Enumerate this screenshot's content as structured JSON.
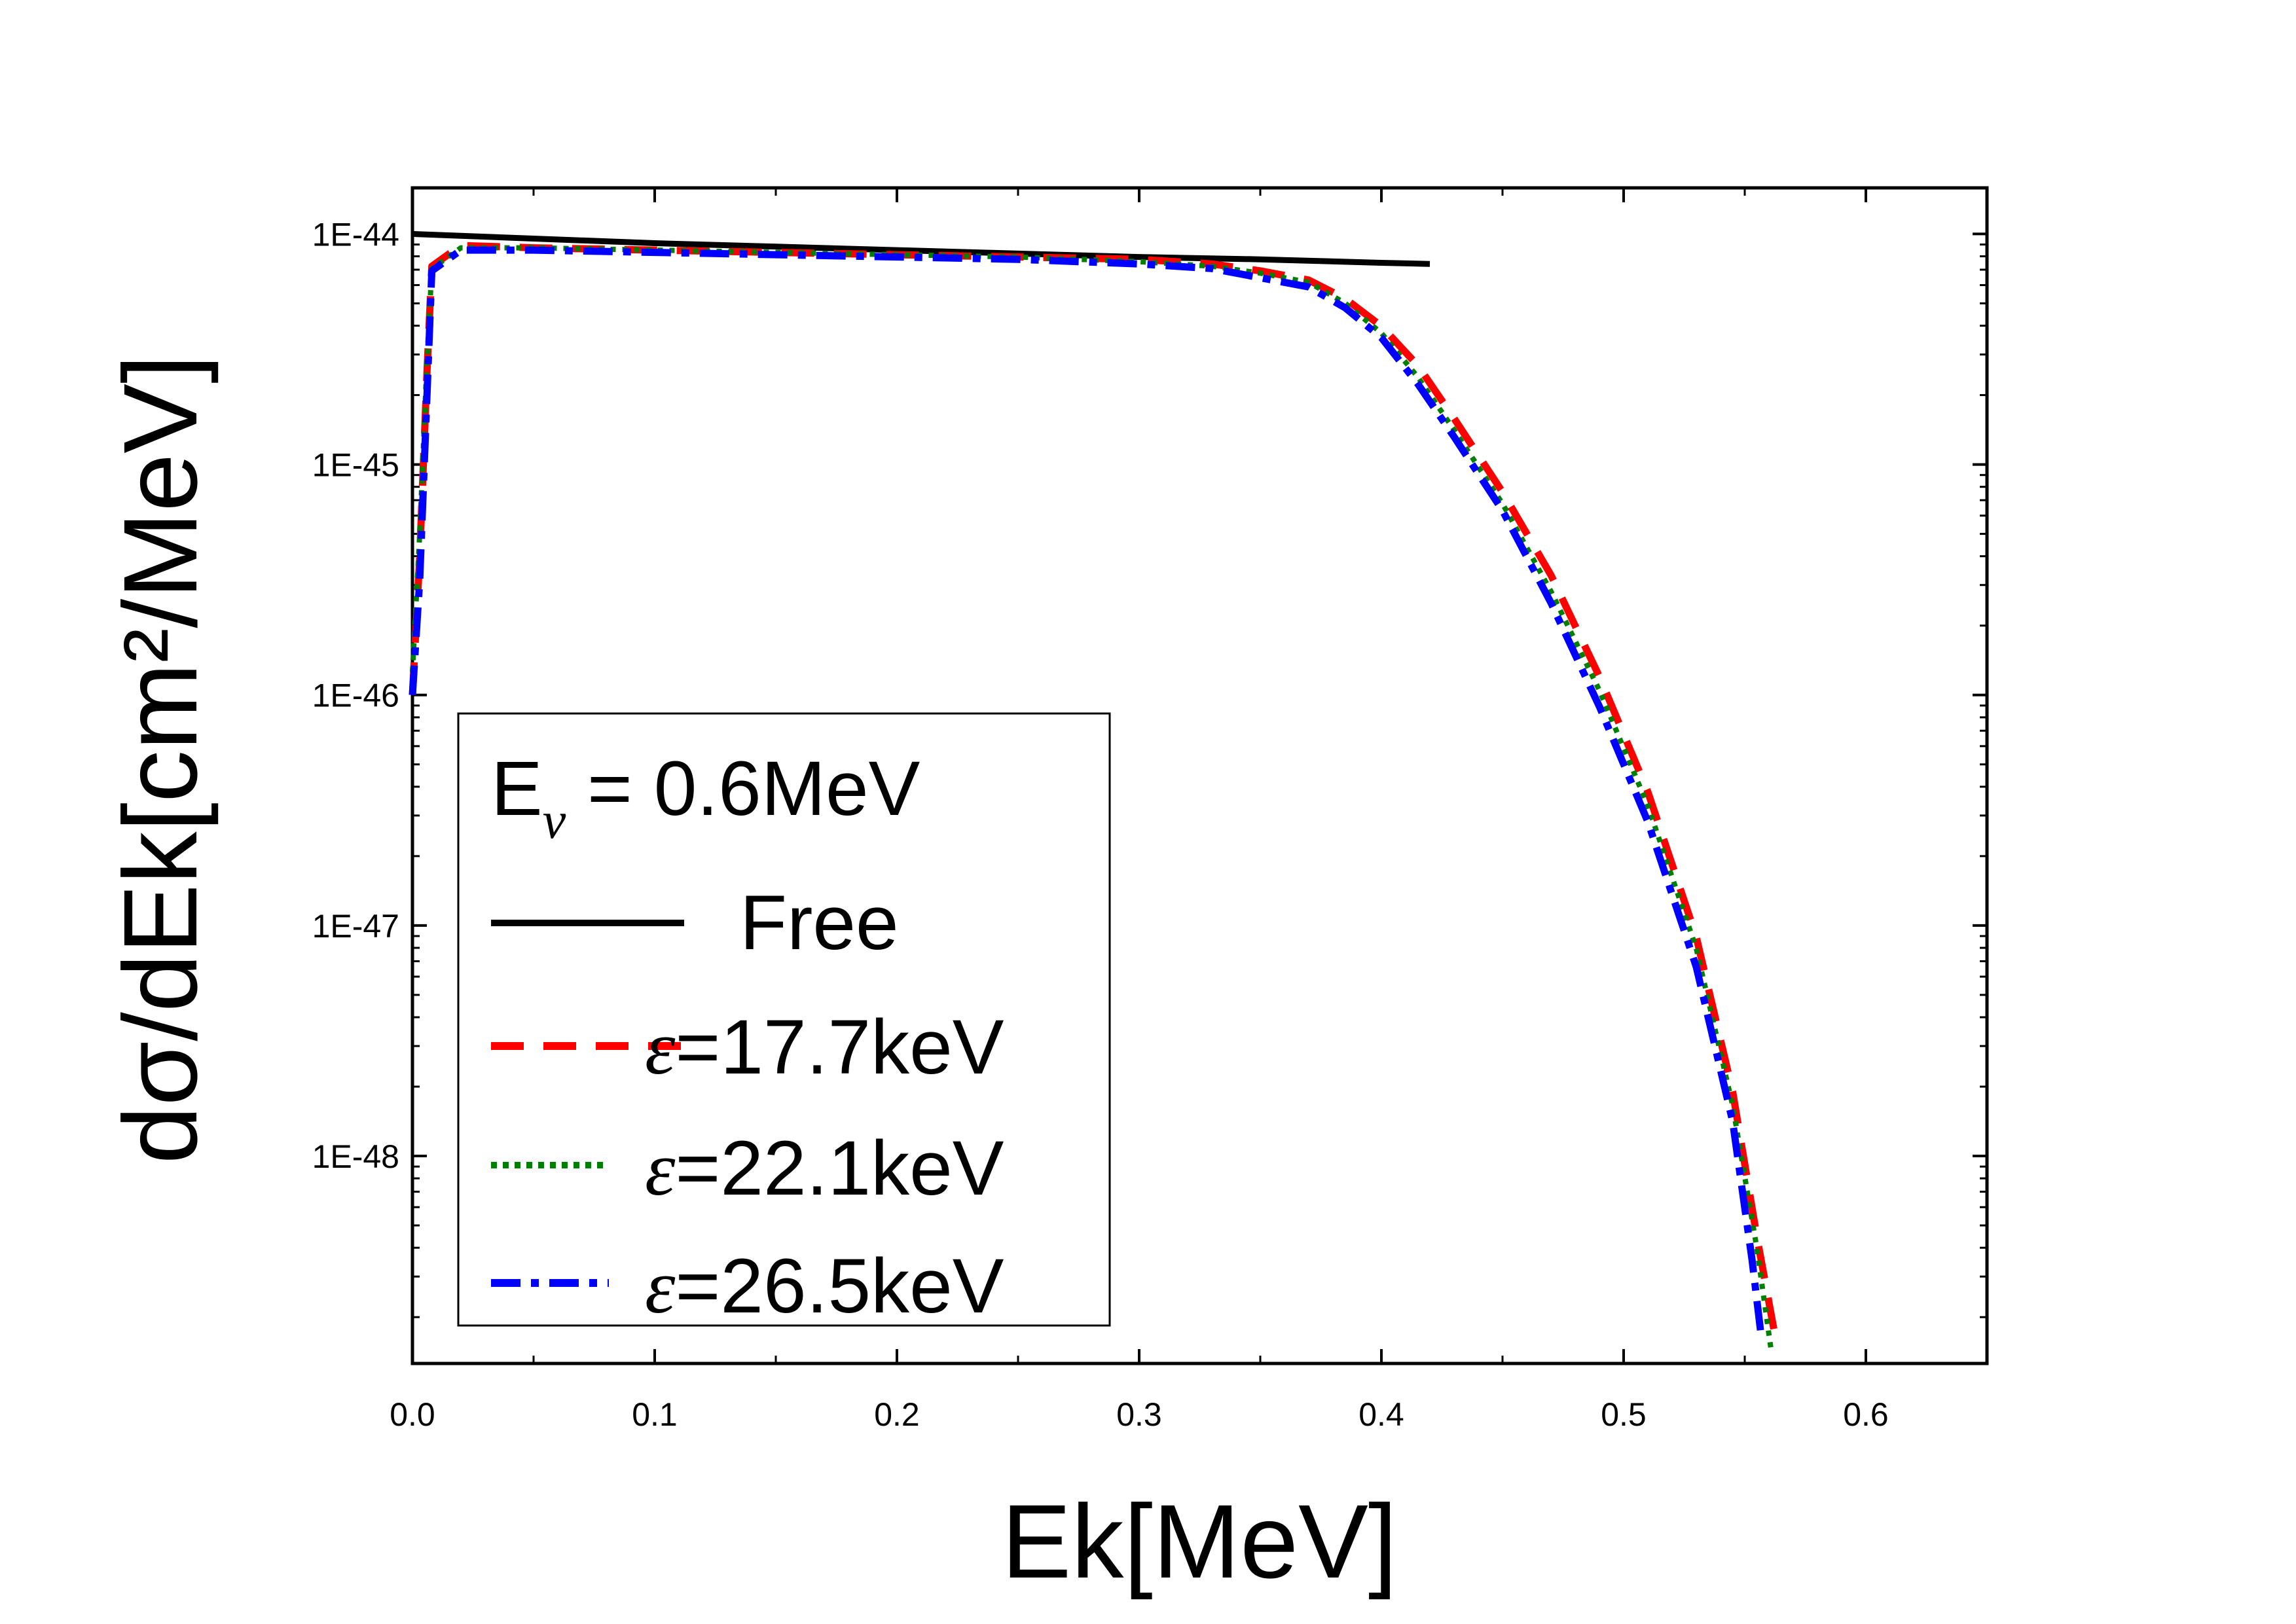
{
  "chart_data": {
    "type": "line",
    "title": "",
    "xlabel": "Ek[MeV]",
    "ylabel": "dσ/dEk[cm²/MeV]",
    "xlim": [
      0.0,
      0.65
    ],
    "ylim_log10": [
      -48.9,
      -43.8
    ],
    "y_scale": "log",
    "x_ticks": [
      0.0,
      0.1,
      0.2,
      0.3,
      0.4,
      0.5,
      0.6
    ],
    "x_tick_labels": [
      "0.0",
      "0.1",
      "0.2",
      "0.3",
      "0.4",
      "0.5",
      "0.6"
    ],
    "y_ticks_log10": [
      -44,
      -45,
      -46,
      -47,
      -48
    ],
    "y_tick_labels": [
      "1E-44",
      "1E-45",
      "1E-46",
      "1E-47",
      "1E-48"
    ],
    "legend": {
      "position": "bottom-left",
      "title_main": "E",
      "title_sub": "ν",
      "title_rest": " = 0.6MeV"
    },
    "series": [
      {
        "name": "Free",
        "label": "Free",
        "color": "#000000",
        "dash": "solid",
        "points": [
          [
            0.0,
            -44.0
          ],
          [
            0.05,
            -44.02
          ],
          [
            0.1,
            -44.04
          ],
          [
            0.15,
            -44.055
          ],
          [
            0.2,
            -44.07
          ],
          [
            0.25,
            -44.085
          ],
          [
            0.3,
            -44.1
          ],
          [
            0.35,
            -44.11
          ],
          [
            0.4,
            -44.125
          ],
          [
            0.42,
            -44.13
          ]
        ]
      },
      {
        "name": "ε=17.7keV",
        "label_prefix": "ε",
        "label_rest": "=17.7keV",
        "color": "#ff0000",
        "dash": "dashed",
        "points": [
          [
            0.0,
            -46.0
          ],
          [
            0.003,
            -45.4
          ],
          [
            0.006,
            -44.6
          ],
          [
            0.008,
            -44.14
          ],
          [
            0.02,
            -44.05
          ],
          [
            0.05,
            -44.06
          ],
          [
            0.1,
            -44.07
          ],
          [
            0.15,
            -44.08
          ],
          [
            0.2,
            -44.09
          ],
          [
            0.25,
            -44.1
          ],
          [
            0.3,
            -44.11
          ],
          [
            0.33,
            -44.13
          ],
          [
            0.35,
            -44.16
          ],
          [
            0.37,
            -44.2
          ],
          [
            0.385,
            -44.28
          ],
          [
            0.4,
            -44.4
          ],
          [
            0.415,
            -44.57
          ],
          [
            0.43,
            -44.8
          ],
          [
            0.45,
            -45.12
          ],
          [
            0.47,
            -45.48
          ],
          [
            0.49,
            -45.92
          ],
          [
            0.51,
            -46.42
          ],
          [
            0.53,
            -47.05
          ],
          [
            0.545,
            -47.72
          ],
          [
            0.555,
            -48.35
          ],
          [
            0.562,
            -48.75
          ]
        ]
      },
      {
        "name": "ε=22.1keV",
        "label_prefix": "ε",
        "label_rest": "=22.1keV",
        "color": "#008000",
        "dash": "dotted",
        "points": [
          [
            0.0,
            -45.9
          ],
          [
            0.003,
            -45.3
          ],
          [
            0.006,
            -44.55
          ],
          [
            0.008,
            -44.15
          ],
          [
            0.02,
            -44.06
          ],
          [
            0.05,
            -44.06
          ],
          [
            0.1,
            -44.07
          ],
          [
            0.15,
            -44.08
          ],
          [
            0.2,
            -44.09
          ],
          [
            0.25,
            -44.1
          ],
          [
            0.3,
            -44.12
          ],
          [
            0.33,
            -44.14
          ],
          [
            0.35,
            -44.17
          ],
          [
            0.37,
            -44.21
          ],
          [
            0.385,
            -44.3
          ],
          [
            0.4,
            -44.43
          ],
          [
            0.415,
            -44.62
          ],
          [
            0.43,
            -44.85
          ],
          [
            0.45,
            -45.17
          ],
          [
            0.47,
            -45.55
          ],
          [
            0.49,
            -45.98
          ],
          [
            0.51,
            -46.48
          ],
          [
            0.53,
            -47.1
          ],
          [
            0.545,
            -47.78
          ],
          [
            0.555,
            -48.4
          ],
          [
            0.561,
            -48.85
          ]
        ]
      },
      {
        "name": "ε=26.5keV",
        "label_prefix": "ε",
        "label_rest": "=26.5keV",
        "color": "#0000ff",
        "dash": "dashdot",
        "points": [
          [
            0.0,
            -46.0
          ],
          [
            0.003,
            -45.5
          ],
          [
            0.006,
            -44.7
          ],
          [
            0.008,
            -44.16
          ],
          [
            0.02,
            -44.07
          ],
          [
            0.05,
            -44.07
          ],
          [
            0.1,
            -44.08
          ],
          [
            0.15,
            -44.09
          ],
          [
            0.2,
            -44.1
          ],
          [
            0.25,
            -44.11
          ],
          [
            0.3,
            -44.13
          ],
          [
            0.33,
            -44.15
          ],
          [
            0.35,
            -44.19
          ],
          [
            0.37,
            -44.23
          ],
          [
            0.385,
            -44.32
          ],
          [
            0.4,
            -44.45
          ],
          [
            0.415,
            -44.65
          ],
          [
            0.43,
            -44.88
          ],
          [
            0.45,
            -45.2
          ],
          [
            0.47,
            -45.6
          ],
          [
            0.49,
            -46.05
          ],
          [
            0.51,
            -46.55
          ],
          [
            0.53,
            -47.18
          ],
          [
            0.545,
            -47.85
          ],
          [
            0.553,
            -48.45
          ],
          [
            0.557,
            -48.8
          ]
        ]
      }
    ]
  }
}
